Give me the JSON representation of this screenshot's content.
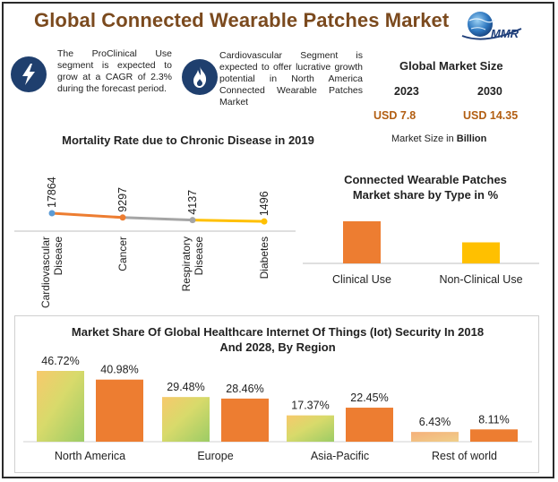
{
  "header": {
    "title": "Global Connected Wearable Patches Market",
    "logo_text": "MMR"
  },
  "info_items": [
    {
      "icon": "lightning-icon",
      "text": "The ProClinical Use segment is expected to grow at a CAGR of 2.3% during the forecast period."
    },
    {
      "icon": "flame-icon",
      "text": "Cardiovascular Segment is expected to offer lucrative growth potential in North America Connected Wearable Patches Market"
    }
  ],
  "global_market": {
    "title": "Global Market Size",
    "years": [
      "2023",
      "2030"
    ],
    "values": [
      "USD 7.8",
      "USD 14.35"
    ],
    "note_prefix": "Market Size in ",
    "note_unit": "Billion"
  },
  "colors": {
    "orange": "#ED7D31",
    "gray": "#A5A5A5",
    "gold": "#FFC000",
    "title_brown": "#7B4A1E",
    "value_brown": "#B25E12",
    "navy": "#1F3F6E"
  },
  "chart_data": [
    {
      "type": "line",
      "title": "Mortality Rate due to Chronic Disease in 2019",
      "categories": [
        "Cardiovascular Disease",
        "Cancer",
        "Respiratory Disease",
        "Diabetes"
      ],
      "category_lines": [
        [
          "Cardiovascular",
          "Disease"
        ],
        [
          "Cancer"
        ],
        [
          "Respiratory",
          "Disease"
        ],
        [
          "Diabetes"
        ]
      ],
      "values": [
        17864,
        9297,
        4137,
        1496
      ],
      "labels": [
        "17864",
        "9297",
        "4137",
        "1496"
      ],
      "segment_colors": [
        "#ED7D31",
        "#A5A5A5",
        "#FFC000"
      ],
      "xlabel": "",
      "ylabel": ""
    },
    {
      "type": "bar",
      "title_lines": [
        "Connected Wearable Patches",
        "Market share by Type in %"
      ],
      "categories": [
        "Clinical Use",
        "Non-Clinical Use"
      ],
      "values": [
        64,
        32
      ],
      "colors": [
        "#ED7D31",
        "#FFC000"
      ],
      "xlabel": "",
      "ylabel": ""
    },
    {
      "type": "bar",
      "title_lines": [
        "Market Share Of Global Healthcare Internet Of Things (Iot) Security In 2018",
        "And 2028, By Region"
      ],
      "categories": [
        "North America",
        "Europe",
        "Asia-Pacific",
        "Rest of world"
      ],
      "series": [
        {
          "name": "2018",
          "values": [
            46.72,
            29.48,
            17.37,
            6.43
          ],
          "labels": [
            "46.72%",
            "29.48%",
            "17.37%",
            "6.43%"
          ]
        },
        {
          "name": "2028",
          "values": [
            40.98,
            28.46,
            22.45,
            8.11
          ],
          "labels": [
            "40.98%",
            "28.46%",
            "22.45%",
            "8.11%"
          ]
        }
      ],
      "ylim": [
        0,
        50
      ],
      "xlabel": "",
      "ylabel": ""
    }
  ]
}
